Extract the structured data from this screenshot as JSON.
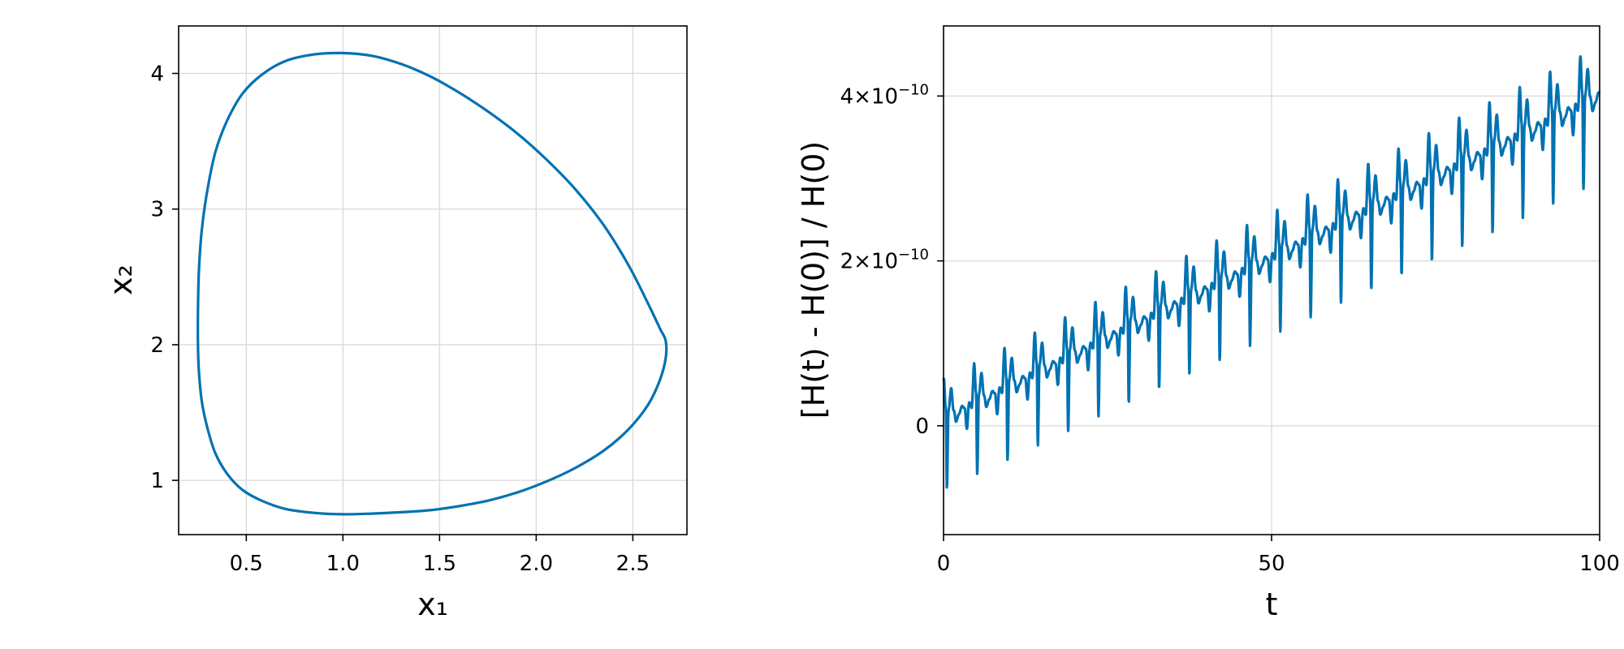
{
  "line_color": "#0072b2",
  "chart_data": [
    {
      "type": "line",
      "xlabel": "x₁",
      "ylabel": "x₂",
      "xlim": [
        0.15,
        2.78
      ],
      "ylim": [
        0.6,
        4.35
      ],
      "xticks": [
        0.5,
        1.0,
        1.5,
        2.0,
        2.5
      ],
      "xtick_labels": [
        "0.5",
        "1.0",
        "1.5",
        "2.0",
        "2.5"
      ],
      "yticks": [
        1,
        2,
        3,
        4
      ],
      "ytick_labels": [
        "1",
        "2",
        "3",
        "4"
      ],
      "grid": true,
      "series": [
        {
          "x": [
            0.995,
            1.15,
            1.3,
            1.45,
            1.6,
            1.75,
            1.9,
            2.05,
            2.2,
            2.35,
            2.48,
            2.58,
            2.64,
            2.67,
            2.67,
            2.64,
            2.58,
            2.48,
            2.35,
            2.2,
            2.05,
            1.9,
            1.75,
            1.6,
            1.45,
            1.3,
            1.15,
            0.995,
            0.85,
            0.7,
            0.58,
            0.48,
            0.4,
            0.34,
            0.3,
            0.27,
            0.255,
            0.25,
            0.25,
            0.255,
            0.27,
            0.3,
            0.34,
            0.4,
            0.48,
            0.58,
            0.7,
            0.85,
            0.995
          ],
          "y": [
            4.15,
            4.13,
            4.07,
            3.98,
            3.86,
            3.72,
            3.56,
            3.37,
            3.15,
            2.88,
            2.58,
            2.3,
            2.12,
            2.03,
            1.9,
            1.74,
            1.56,
            1.38,
            1.22,
            1.09,
            0.99,
            0.91,
            0.85,
            0.81,
            0.78,
            0.765,
            0.755,
            0.75,
            0.76,
            0.79,
            0.85,
            0.93,
            1.05,
            1.2,
            1.38,
            1.58,
            1.8,
            2.0,
            2.25,
            2.55,
            2.85,
            3.15,
            3.42,
            3.65,
            3.85,
            3.99,
            4.09,
            4.14,
            4.15
          ]
        }
      ]
    },
    {
      "type": "line",
      "xlabel": "t",
      "ylabel": "[H(t) - H(0)] / H(0)",
      "xlim": [
        0,
        100
      ],
      "ylim": [
        -1.32e-10,
        4.85e-10
      ],
      "xticks": [
        0,
        50,
        100
      ],
      "xtick_labels": [
        "0",
        "50",
        "100"
      ],
      "yticks": [
        0,
        2e-10,
        4e-10
      ],
      "ytick_base": [
        "0",
        "2×10",
        "4×10"
      ],
      "ytick_exp": [
        "",
        "−10",
        "−10"
      ],
      "grid": true,
      "signal": {
        "period": 4.62,
        "trend_start": 5e-12,
        "trend_end": 3.95e-10,
        "oscillation": [
          [
            0.0,
            0.2
          ],
          [
            0.08,
            0.1
          ],
          [
            0.16,
            -0.3
          ],
          [
            0.24,
            0.2
          ],
          [
            0.32,
            0.0
          ],
          [
            0.4,
            1.3
          ],
          [
            0.46,
            0.4
          ],
          [
            0.5,
            -1.1
          ],
          [
            0.56,
            0.3
          ],
          [
            0.64,
            0.9
          ],
          [
            0.72,
            0.2
          ],
          [
            0.8,
            -0.1
          ],
          [
            0.9,
            0.0
          ],
          [
            1.0,
            0.2
          ]
        ],
        "osc_start": 4e-11,
        "osc_end": 5e-11,
        "dip_start": 7.5e-11,
        "dip_end": 9e-11
      }
    }
  ]
}
